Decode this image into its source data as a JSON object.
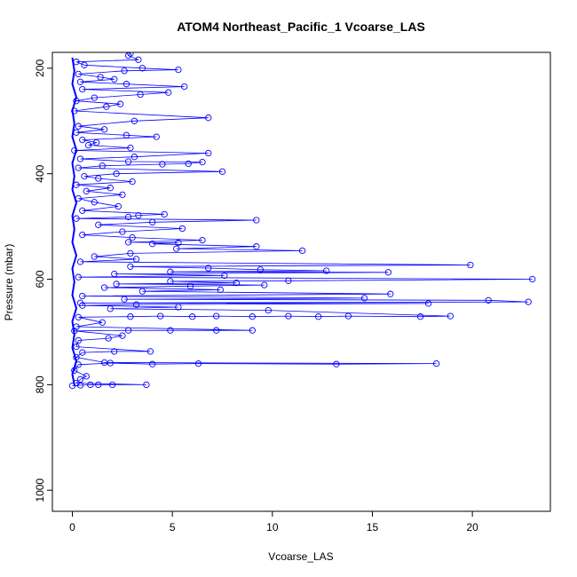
{
  "chart_data": {
    "type": "scatter",
    "title": "ATOM4 Northeast_Pacific_1 Vcoarse_LAS",
    "xlabel": "Vcoarse_LAS",
    "ylabel": "Pressure (mbar)",
    "xlim": [
      -1,
      23.9
    ],
    "ylim": [
      1040,
      170
    ],
    "y_reversed": true,
    "x_ticks": [
      "0",
      "5",
      "10",
      "15",
      "20"
    ],
    "y_ticks": [
      "200",
      "400",
      "600",
      "800",
      "1000"
    ],
    "grid": false,
    "legend": "none",
    "colors": {
      "series": "#0000ff",
      "frame": "#000000"
    },
    "series": [
      {
        "marker": "open-circle",
        "connected": true,
        "points": [
          [
            2.9,
            172
          ],
          [
            2.8,
            176
          ],
          [
            3.3,
            184
          ],
          [
            0.2,
            188
          ],
          [
            0.6,
            194
          ],
          [
            3.5,
            200
          ],
          [
            5.3,
            203
          ],
          [
            2.6,
            205
          ],
          [
            0.3,
            211
          ],
          [
            1.4,
            217
          ],
          [
            2.1,
            221
          ],
          [
            0.4,
            226
          ],
          [
            2.7,
            230
          ],
          [
            5.6,
            235
          ],
          [
            0.5,
            240
          ],
          [
            4.8,
            246
          ],
          [
            3.4,
            250
          ],
          [
            1.1,
            256
          ],
          [
            0.2,
            262
          ],
          [
            2.4,
            268
          ],
          [
            1.7,
            273
          ],
          [
            0.1,
            281
          ],
          [
            6.8,
            294
          ],
          [
            3.1,
            300
          ],
          [
            0.3,
            310
          ],
          [
            1.6,
            316
          ],
          [
            0.2,
            322
          ],
          [
            2.7,
            327
          ],
          [
            4.2,
            330
          ],
          [
            0.5,
            336
          ],
          [
            1.2,
            341
          ],
          [
            0.8,
            346
          ],
          [
            2.9,
            351
          ],
          [
            0.1,
            356
          ],
          [
            6.8,
            361
          ],
          [
            3.1,
            368
          ],
          [
            0.4,
            372
          ],
          [
            2.8,
            377
          ],
          [
            6.5,
            378
          ],
          [
            5.8,
            381
          ],
          [
            4.5,
            382
          ],
          [
            1.5,
            385
          ],
          [
            0.3,
            389
          ],
          [
            7.5,
            396
          ],
          [
            2.2,
            400
          ],
          [
            0.6,
            405
          ],
          [
            1.3,
            409
          ],
          [
            3.0,
            415
          ],
          [
            0.2,
            421
          ],
          [
            1.9,
            427
          ],
          [
            0.7,
            433
          ],
          [
            2.5,
            440
          ],
          [
            0.3,
            447
          ],
          [
            1.1,
            454
          ],
          [
            2.3,
            462
          ],
          [
            0.5,
            470
          ],
          [
            4.6,
            477
          ],
          [
            3.3,
            479
          ],
          [
            2.8,
            482
          ],
          [
            0.2,
            485
          ],
          [
            9.2,
            488
          ],
          [
            4.0,
            492
          ],
          [
            1.3,
            497
          ],
          [
            5.5,
            504
          ],
          [
            2.5,
            510
          ],
          [
            0.5,
            516
          ],
          [
            3.0,
            521
          ],
          [
            6.5,
            526
          ],
          [
            2.8,
            530
          ],
          [
            5.3,
            531
          ],
          [
            4.0,
            533
          ],
          [
            9.2,
            538
          ],
          [
            5.2,
            542
          ],
          [
            11.5,
            546
          ],
          [
            2.9,
            551
          ],
          [
            1.1,
            557
          ],
          [
            3.2,
            562
          ],
          [
            0.4,
            567
          ],
          [
            19.9,
            573
          ],
          [
            2.9,
            576
          ],
          [
            6.8,
            579
          ],
          [
            9.4,
            582
          ],
          [
            12.7,
            584
          ],
          [
            4.9,
            586
          ],
          [
            15.8,
            587
          ],
          [
            2.1,
            590
          ],
          [
            7.6,
            593
          ],
          [
            0.3,
            596
          ],
          [
            23.0,
            600
          ],
          [
            10.8,
            603
          ],
          [
            4.9,
            604
          ],
          [
            8.2,
            607
          ],
          [
            2.2,
            609
          ],
          [
            9.6,
            611
          ],
          [
            5.9,
            613
          ],
          [
            1.6,
            616
          ],
          [
            7.4,
            620
          ],
          [
            3.5,
            623
          ],
          [
            15.9,
            628
          ],
          [
            0.5,
            632
          ],
          [
            14.6,
            636
          ],
          [
            2.6,
            638
          ],
          [
            20.8,
            640
          ],
          [
            22.8,
            643
          ],
          [
            0.4,
            645
          ],
          [
            17.8,
            646
          ],
          [
            3.2,
            648
          ],
          [
            0.5,
            650
          ],
          [
            5.3,
            653
          ],
          [
            1.9,
            656
          ],
          [
            9.8,
            659
          ],
          [
            18.9,
            670
          ],
          [
            17.4,
            671
          ],
          [
            13.8,
            670
          ],
          [
            12.3,
            671
          ],
          [
            10.8,
            670
          ],
          [
            9.0,
            671
          ],
          [
            7.2,
            670
          ],
          [
            6.0,
            671
          ],
          [
            4.4,
            670
          ],
          [
            2.9,
            671
          ],
          [
            0.3,
            672
          ],
          [
            1.5,
            682
          ],
          [
            0.2,
            690
          ],
          [
            9.0,
            697
          ],
          [
            7.2,
            697
          ],
          [
            4.9,
            697
          ],
          [
            2.8,
            697
          ],
          [
            0.1,
            698
          ],
          [
            2.5,
            707
          ],
          [
            1.8,
            712
          ],
          [
            0.3,
            716
          ],
          [
            0.2,
            728
          ],
          [
            3.9,
            737
          ],
          [
            2.1,
            737
          ],
          [
            0.5,
            739
          ],
          [
            0.2,
            748
          ],
          [
            1.6,
            758
          ],
          [
            18.2,
            760
          ],
          [
            13.2,
            761
          ],
          [
            6.3,
            760
          ],
          [
            4.0,
            761
          ],
          [
            1.9,
            759
          ],
          [
            0.3,
            762
          ],
          [
            0.1,
            773
          ],
          [
            0.7,
            784
          ],
          [
            0.4,
            790
          ],
          [
            0.2,
            797
          ],
          [
            3.7,
            800
          ],
          [
            2.0,
            800
          ],
          [
            1.3,
            800
          ],
          [
            0.9,
            800
          ],
          [
            0.4,
            801
          ],
          [
            0.0,
            802
          ]
        ]
      }
    ],
    "baseline_points": [
      [
        0.0,
        180
      ],
      [
        0.1,
        205
      ],
      [
        0.0,
        230
      ],
      [
        0.2,
        255
      ],
      [
        0.0,
        280
      ],
      [
        0.1,
        305
      ],
      [
        0.0,
        330
      ],
      [
        0.2,
        355
      ],
      [
        0.0,
        380
      ],
      [
        0.1,
        405
      ],
      [
        0.0,
        430
      ],
      [
        0.2,
        455
      ],
      [
        0.0,
        480
      ],
      [
        0.1,
        505
      ],
      [
        0.0,
        530
      ],
      [
        0.2,
        555
      ],
      [
        0.0,
        580
      ],
      [
        0.1,
        605
      ],
      [
        0.0,
        630
      ],
      [
        0.2,
        655
      ],
      [
        0.0,
        680
      ],
      [
        0.1,
        705
      ],
      [
        0.0,
        730
      ],
      [
        0.2,
        755
      ],
      [
        0.0,
        780
      ],
      [
        0.1,
        800
      ]
    ]
  }
}
